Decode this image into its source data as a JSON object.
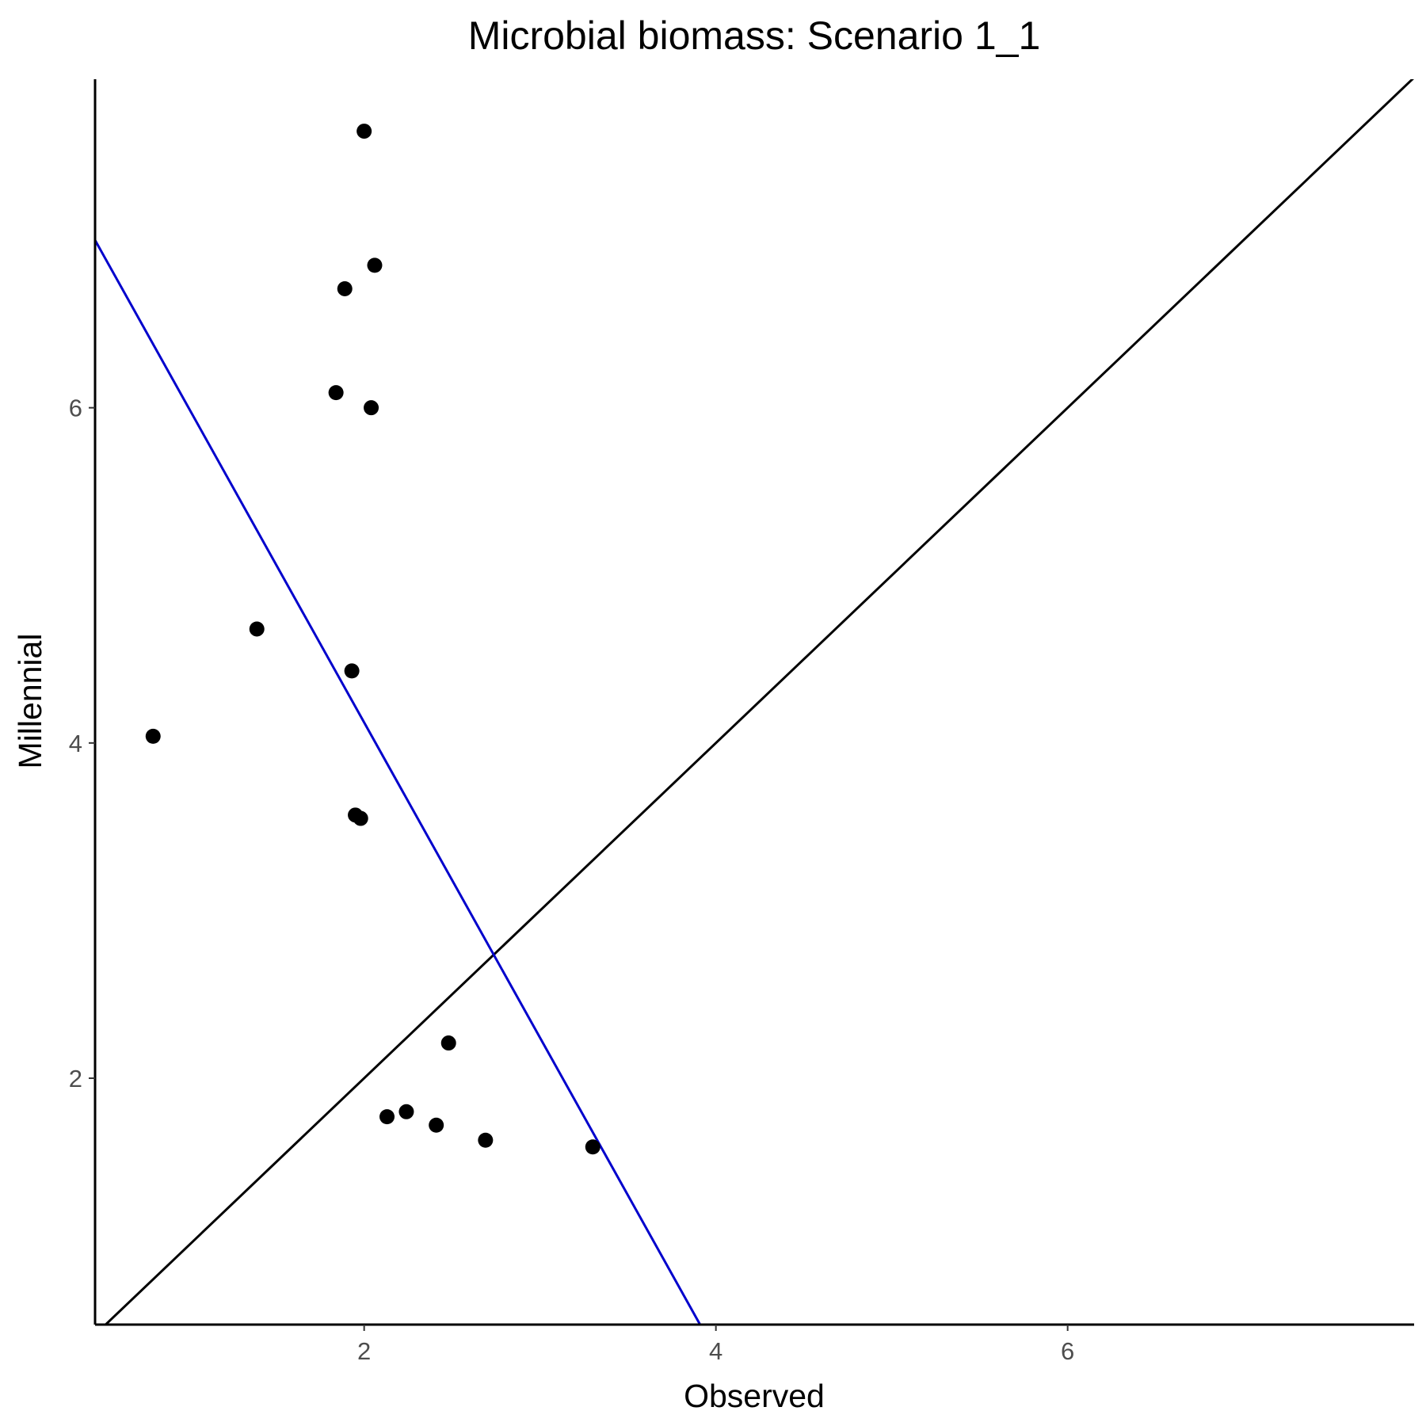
{
  "chart_data": {
    "type": "scatter",
    "title": "Microbial biomass: Scenario 1_1",
    "xlabel": "Observed",
    "ylabel": "Millennial",
    "xlim": [
      0.47,
      7.97
    ],
    "ylim": [
      0.53,
      7.96
    ],
    "xticks": [
      2,
      4,
      6
    ],
    "yticks": [
      2,
      4,
      6
    ],
    "grid": false,
    "colors": {
      "points": "#000000",
      "identity_line": "#000000",
      "fit_line": "#0000cc"
    },
    "points": [
      {
        "x": 2.0,
        "y": 7.65
      },
      {
        "x": 2.06,
        "y": 6.85
      },
      {
        "x": 1.89,
        "y": 6.71
      },
      {
        "x": 1.84,
        "y": 6.09
      },
      {
        "x": 2.04,
        "y": 6.0
      },
      {
        "x": 1.39,
        "y": 4.68
      },
      {
        "x": 1.93,
        "y": 4.43
      },
      {
        "x": 0.8,
        "y": 4.04
      },
      {
        "x": 1.95,
        "y": 3.57
      },
      {
        "x": 1.98,
        "y": 3.55
      },
      {
        "x": 2.48,
        "y": 2.21
      },
      {
        "x": 2.24,
        "y": 1.8
      },
      {
        "x": 2.13,
        "y": 1.77
      },
      {
        "x": 2.41,
        "y": 1.72
      },
      {
        "x": 2.69,
        "y": 1.63
      },
      {
        "x": 3.3,
        "y": 1.59
      }
    ],
    "lines": [
      {
        "kind": "identity",
        "x": [
          0.47,
          7.97
        ],
        "y": [
          0.47,
          7.97
        ]
      },
      {
        "kind": "fit",
        "x": [
          0.47,
          3.91
        ],
        "y": [
          7.0,
          0.53
        ]
      }
    ]
  }
}
